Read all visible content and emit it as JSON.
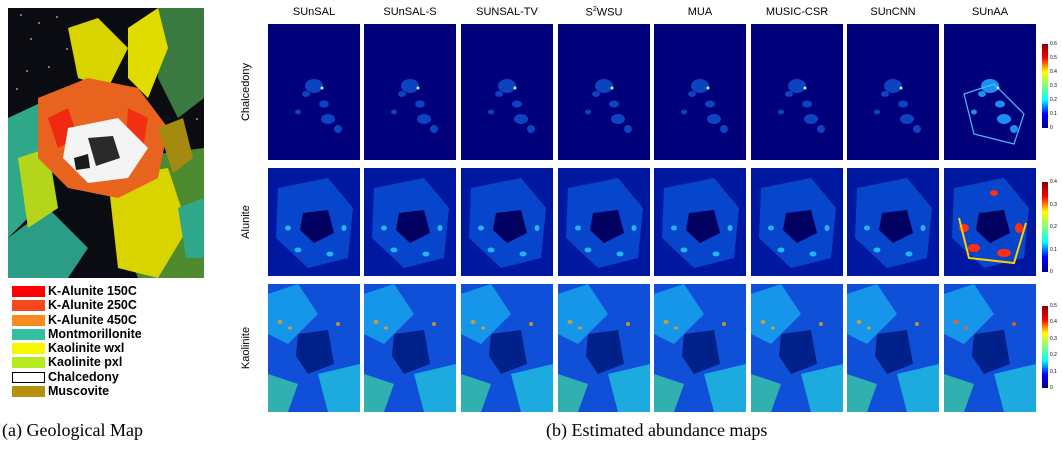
{
  "geological_map": {
    "legend": [
      {
        "label": "K-Alunite 150C",
        "color": "#ff0000"
      },
      {
        "label": "K-Alunite 250C",
        "color": "#f4481e"
      },
      {
        "label": "K-Alunite 450C",
        "color": "#f98a22"
      },
      {
        "label": "Montmorillonite",
        "color": "#33bfa0"
      },
      {
        "label": "Kaolinite wxl",
        "color": "#f7f700"
      },
      {
        "label": "Kaolinite pxl",
        "color": "#b7ea1c"
      },
      {
        "label": "Chalcedony",
        "color": "#ffffff"
      },
      {
        "label": "Muscovite",
        "color": "#b5920c"
      }
    ],
    "caption": "(a) Geological Map"
  },
  "abundance_maps": {
    "caption": "(b) Estimated abundance maps",
    "methods": [
      "SUnSAL",
      "SUnSAL-S",
      "SUNSAL-TV",
      "S",
      "MUA",
      "MUSIC-CSR",
      "SUnCNN",
      "SUnAA"
    ],
    "s2wsu": {
      "base": "S",
      "sup": "2",
      "rest": "WSU"
    },
    "rows": [
      {
        "mineral": "Chalcedony",
        "colorbar_ticks": [
          "0.6",
          "0.5",
          "0.4",
          "0.3",
          "0.2",
          "0.1",
          "0"
        ]
      },
      {
        "mineral": "Alunite",
        "colorbar_ticks": [
          "0.4",
          "0.3",
          "0.2",
          "0.1",
          "0"
        ]
      },
      {
        "mineral": "Kaolinite",
        "colorbar_ticks": [
          "0.5",
          "0.4",
          "0.3",
          "0.2",
          "0.1",
          "0"
        ]
      }
    ]
  }
}
